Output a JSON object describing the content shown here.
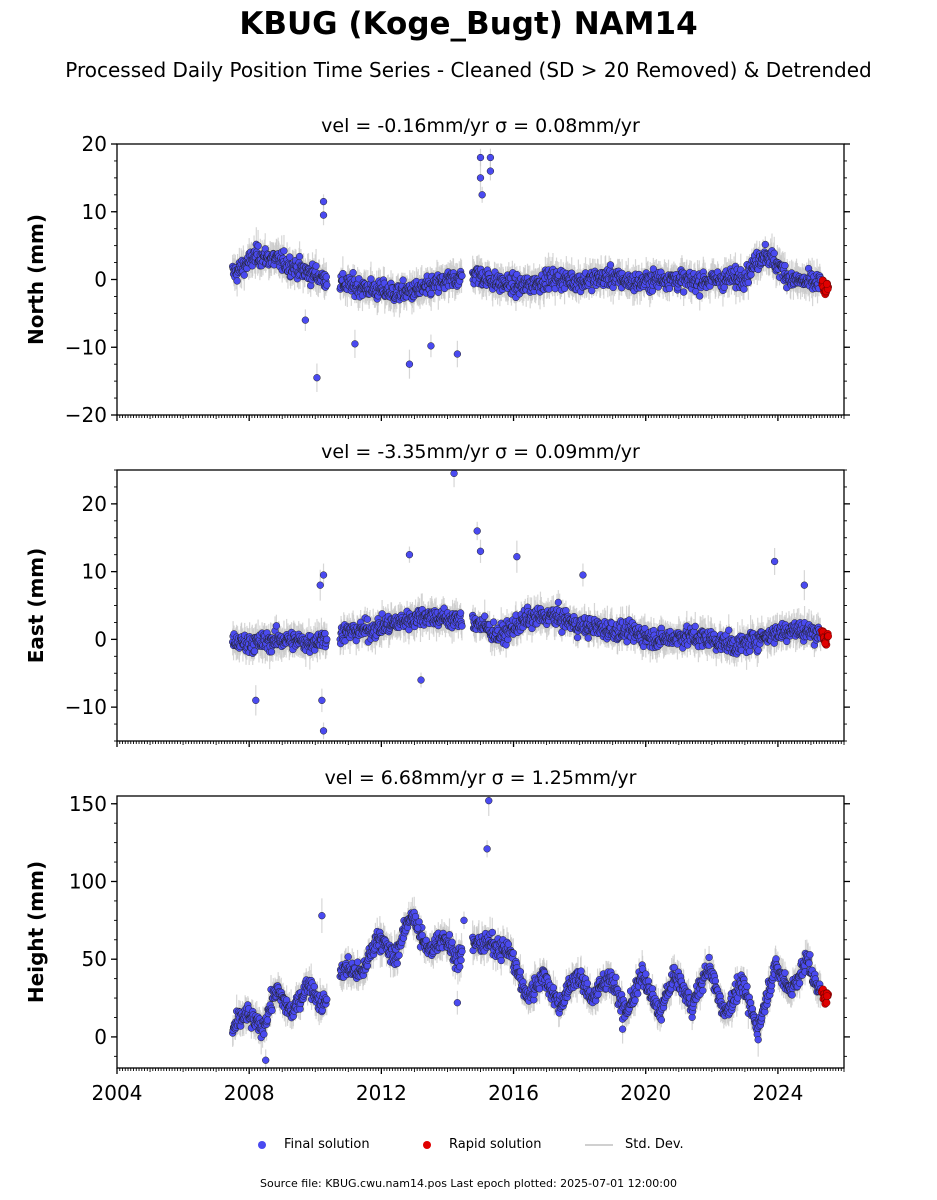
{
  "title": "KBUG (Koge_Bugt) NAM14",
  "subtitle": "Processed Daily Position Time Series - Cleaned (SD > 20 Removed) & Detrended",
  "footer": "Source file: KBUG.cwu.nam14.pos  Last epoch plotted: 2025-07-01 12:00:00",
  "legend": {
    "final": "Final solution",
    "rapid": "Rapid solution",
    "std": "Std. Dev."
  },
  "colors": {
    "final": "#4a4af0",
    "rapid": "#e00000",
    "std": "#c8c8c8",
    "edge": "#222222"
  },
  "chart_data": [
    {
      "type": "scatter",
      "panel": "north",
      "title": "vel = -0.16mm/yr   σ = 0.08mm/yr",
      "ylabel": "North (mm)",
      "xlim": [
        2004,
        2026
      ],
      "ylim": [
        -20,
        20
      ],
      "yticks": [
        -20,
        -10,
        0,
        10,
        20
      ],
      "xticks": [],
      "gaps": [
        [
          2010.35,
          2010.75
        ],
        [
          2014.45,
          2014.75
        ]
      ],
      "series": [
        {
          "role": "final",
          "x_range": [
            2007.5,
            2025.3
          ],
          "x": [
            2007.6,
            2008.2,
            2008.8,
            2009.5,
            2010.1,
            2011.0,
            2011.8,
            2012.5,
            2013.2,
            2014.0,
            2014.9,
            2015.5,
            2016.3,
            2017.2,
            2018.0,
            2018.9,
            2019.7,
            2020.6,
            2021.4,
            2022.3,
            2023.0,
            2023.6,
            2024.4,
            2025.1
          ],
          "y": [
            1.0,
            3.5,
            3.0,
            1.5,
            0.5,
            -0.8,
            -1.5,
            -2.0,
            -1.5,
            -0.2,
            0.8,
            -0.5,
            -1.0,
            0.2,
            -0.3,
            0.4,
            -0.5,
            0.2,
            -0.3,
            0.0,
            0.5,
            4.0,
            0.0,
            -0.5
          ],
          "outliers": [
            [
              2010.25,
              11.5
            ],
            [
              2010.25,
              9.5
            ],
            [
              2010.05,
              -14.5
            ],
            [
              2012.85,
              -12.5
            ],
            [
              2014.3,
              -11.0
            ],
            [
              2015.0,
              18.0
            ],
            [
              2015.3,
              18.0
            ],
            [
              2015.0,
              15.0
            ],
            [
              2015.05,
              12.5
            ],
            [
              2015.3,
              16.0
            ],
            [
              2011.2,
              -9.5
            ],
            [
              2013.5,
              -9.8
            ],
            [
              2009.7,
              -6.0
            ]
          ]
        },
        {
          "role": "rapid",
          "x": [
            2025.35,
            2025.4,
            2025.45,
            2025.5
          ],
          "y": [
            -0.5,
            -1.5,
            -2.0,
            -1.0
          ]
        }
      ]
    },
    {
      "type": "scatter",
      "panel": "east",
      "title": "vel = -3.35mm/yr   σ = 0.09mm/yr",
      "ylabel": "East (mm)",
      "xlim": [
        2004,
        2026
      ],
      "ylim": [
        -15,
        25
      ],
      "yticks": [
        -10,
        0,
        10,
        20
      ],
      "xticks": [],
      "gaps": [
        [
          2010.35,
          2010.75
        ],
        [
          2014.45,
          2014.75
        ]
      ],
      "series": [
        {
          "role": "final",
          "x_range": [
            2007.5,
            2025.3
          ],
          "x": [
            2007.6,
            2008.3,
            2009.0,
            2009.8,
            2010.9,
            2011.7,
            2012.5,
            2013.3,
            2014.0,
            2014.9,
            2015.6,
            2016.4,
            2017.2,
            2018.0,
            2018.8,
            2019.6,
            2020.4,
            2021.2,
            2022.0,
            2022.8,
            2023.6,
            2024.4,
            2025.1
          ],
          "y": [
            -0.5,
            -0.5,
            0.0,
            -0.5,
            1.0,
            1.5,
            2.5,
            3.5,
            3.0,
            2.5,
            0.5,
            3.0,
            3.5,
            2.0,
            1.5,
            1.0,
            0.0,
            0.5,
            0.0,
            -1.0,
            0.5,
            1.5,
            1.0
          ],
          "outliers": [
            [
              2014.2,
              24.5
            ],
            [
              2014.9,
              16.0
            ],
            [
              2015.0,
              13.0
            ],
            [
              2012.85,
              12.5
            ],
            [
              2023.9,
              11.5
            ],
            [
              2010.25,
              9.5
            ],
            [
              2010.15,
              8.0
            ],
            [
              2010.2,
              -9.0
            ],
            [
              2010.25,
              -13.5
            ],
            [
              2008.2,
              -9.0
            ],
            [
              2013.2,
              -6.0
            ],
            [
              2024.8,
              8.0
            ],
            [
              2016.1,
              12.2
            ],
            [
              2018.1,
              9.5
            ]
          ]
        },
        {
          "role": "rapid",
          "x": [
            2025.35,
            2025.4,
            2025.45,
            2025.5
          ],
          "y": [
            1.0,
            0.0,
            -0.5,
            0.5
          ]
        }
      ]
    },
    {
      "type": "scatter",
      "panel": "height",
      "title": "vel = 6.68mm/yr   σ = 1.25mm/yr",
      "ylabel": "Height (mm)",
      "xlim": [
        2004,
        2026
      ],
      "ylim": [
        -20,
        155
      ],
      "yticks": [
        0,
        50,
        100,
        150
      ],
      "xticks": [
        2004,
        2008,
        2012,
        2016,
        2020,
        2024
      ],
      "gaps": [
        [
          2010.35,
          2010.75
        ],
        [
          2014.45,
          2014.75
        ]
      ],
      "series": [
        {
          "role": "final",
          "x_range": [
            2007.5,
            2025.3
          ],
          "x": [
            2007.5,
            2007.9,
            2008.4,
            2008.8,
            2009.3,
            2009.8,
            2010.2,
            2010.9,
            2011.4,
            2011.9,
            2012.4,
            2012.9,
            2013.4,
            2013.9,
            2014.3,
            2014.8,
            2015.3,
            2015.9,
            2016.4,
            2016.9,
            2017.4,
            2017.9,
            2018.4,
            2018.9,
            2019.4,
            2019.9,
            2020.4,
            2020.9,
            2021.4,
            2021.9,
            2022.4,
            2022.9,
            2023.4,
            2023.9,
            2024.4,
            2024.9,
            2025.2
          ],
          "y": [
            5,
            15,
            5,
            30,
            15,
            35,
            20,
            45,
            40,
            65,
            50,
            80,
            55,
            65,
            50,
            60,
            60,
            55,
            25,
            40,
            20,
            40,
            25,
            40,
            15,
            40,
            15,
            40,
            20,
            45,
            15,
            35,
            5,
            45,
            30,
            50,
            30
          ],
          "outliers": [
            [
              2015.25,
              152
            ],
            [
              2015.2,
              121
            ],
            [
              2010.2,
              78
            ],
            [
              2014.5,
              75
            ],
            [
              2013.1,
              70
            ],
            [
              2008.5,
              -15
            ],
            [
              2019.3,
              5
            ],
            [
              2014.3,
              22
            ]
          ]
        },
        {
          "role": "rapid",
          "x": [
            2025.35,
            2025.4,
            2025.45,
            2025.5
          ],
          "y": [
            30,
            26,
            22,
            28
          ]
        }
      ]
    }
  ]
}
